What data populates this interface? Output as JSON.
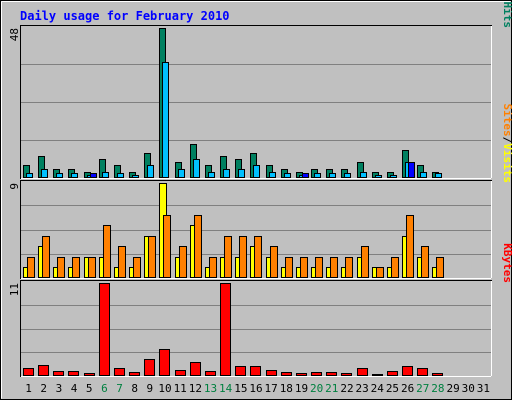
{
  "chart_data": {
    "type": "bar",
    "title": "Daily usage for February 2010",
    "days": [
      "1",
      "2",
      "3",
      "4",
      "5",
      "6",
      "7",
      "8",
      "9",
      "10",
      "11",
      "12",
      "13",
      "14",
      "15",
      "16",
      "17",
      "18",
      "19",
      "20",
      "21",
      "22",
      "23",
      "24",
      "25",
      "26",
      "27",
      "28",
      "29",
      "30",
      "31"
    ],
    "weekend_days": [
      "6",
      "7",
      "13",
      "14",
      "20",
      "21",
      "27",
      "28"
    ],
    "panels": [
      {
        "id": "hits",
        "ymax_label": "48",
        "ymax": 48,
        "side_label": [
          "Pages",
          "/",
          "Files",
          "/",
          "Hits"
        ],
        "series": [
          {
            "name": "Hits",
            "color": "#008060",
            "values": [
              4,
              7,
              3,
              3,
              2,
              6,
              4,
              2,
              8,
              48,
              5,
              11,
              4,
              7,
              6,
              8,
              4,
              3,
              2,
              3,
              3,
              3,
              5,
              2,
              2,
              9,
              4,
              2,
              0,
              0,
              0
            ]
          },
          {
            "name": "Files",
            "color": "#00C0FF",
            "values": [
              1.5,
              3,
              1.5,
              1.5,
              1,
              2,
              1.5,
              1,
              4,
              37,
              3,
              6,
              2,
              3,
              3,
              4,
              2,
              1.5,
              1,
              1.5,
              1.5,
              1.5,
              2,
              1,
              1,
              5,
              2,
              1.5,
              0,
              0,
              0
            ]
          },
          {
            "name": "Pages",
            "color": "#0000FF",
            "values": [
              0,
              0,
              0,
              0,
              1.5,
              0,
              0,
              0,
              0,
              0,
              0,
              0,
              0,
              0,
              0,
              0,
              0,
              0,
              1.5,
              0,
              0,
              0,
              0,
              0,
              0,
              5,
              0,
              0,
              0,
              0,
              0
            ]
          }
        ]
      },
      {
        "id": "visits",
        "ymax_label": "9",
        "ymax": 9,
        "side_label": [
          "Sites",
          "/",
          "Visits"
        ],
        "series": [
          {
            "name": "Visits",
            "color": "#FFFF00",
            "values": [
              1,
              3,
              1,
              1,
              2,
              2,
              1,
              1,
              4,
              9,
              2,
              5,
              1,
              2,
              2,
              3,
              2,
              1,
              1,
              1,
              1,
              1,
              2,
              1,
              1,
              4,
              2,
              1,
              0,
              0,
              0
            ]
          },
          {
            "name": "Sites",
            "color": "#FF8000",
            "values": [
              2,
              4,
              2,
              2,
              2,
              5,
              3,
              2,
              4,
              6,
              3,
              6,
              2,
              4,
              4,
              4,
              3,
              2,
              2,
              2,
              2,
              2,
              3,
              1,
              2,
              6,
              3,
              2,
              0,
              0,
              0
            ]
          }
        ]
      },
      {
        "id": "kbytes",
        "ymax_label": "11",
        "ymax": 11,
        "side_label": [
          "KBytes"
        ],
        "series": [
          {
            "name": "KBytes",
            "color": "#FF0000",
            "values": [
              1,
              1.3,
              0.6,
              0.6,
              0.4,
              11,
              1,
              0.5,
              2,
              3.2,
              0.7,
              1.6,
              0.6,
              11,
              1.2,
              1.2,
              0.7,
              0.5,
              0.4,
              0.5,
              0.5,
              0.4,
              0.9,
              0.2,
              0.6,
              1.2,
              1,
              0.4,
              0,
              0,
              0
            ]
          }
        ]
      }
    ]
  }
}
